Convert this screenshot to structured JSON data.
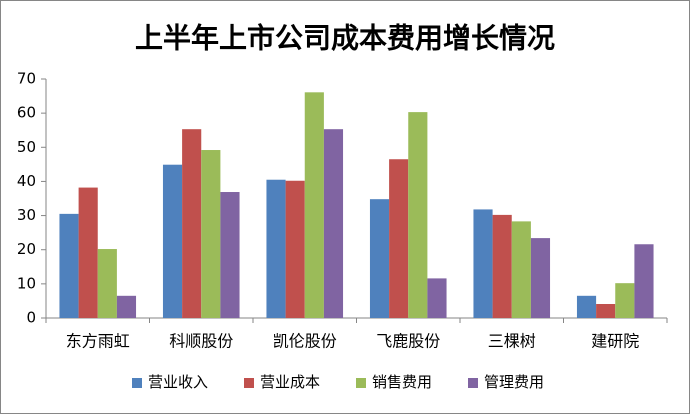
{
  "chart_data": {
    "type": "bar",
    "title": "上半年上市公司成本费用增长情况",
    "categories": [
      "东方雨虹",
      "科顺股份",
      "凯伦股份",
      "飞鹿股份",
      "三棵树",
      "建研院"
    ],
    "series": [
      {
        "name": "营业收入",
        "color": "#4f81bd",
        "values": [
          30.5,
          44.9,
          40.5,
          34.8,
          31.8,
          6.5
        ]
      },
      {
        "name": "营业成本",
        "color": "#c0504d",
        "values": [
          38.2,
          55.3,
          40.2,
          46.5,
          30.2,
          4.1
        ]
      },
      {
        "name": "销售费用",
        "color": "#9bbb59",
        "values": [
          20.2,
          49.2,
          66.1,
          60.3,
          28.3,
          10.2
        ]
      },
      {
        "name": "管理费用",
        "color": "#8064a2",
        "values": [
          6.5,
          36.9,
          55.3,
          11.6,
          23.4,
          21.6
        ]
      }
    ],
    "ylim": [
      0,
      70
    ],
    "yticks": [
      0,
      10,
      20,
      30,
      40,
      50,
      60,
      70
    ],
    "grid": false,
    "legend": "bottom"
  }
}
